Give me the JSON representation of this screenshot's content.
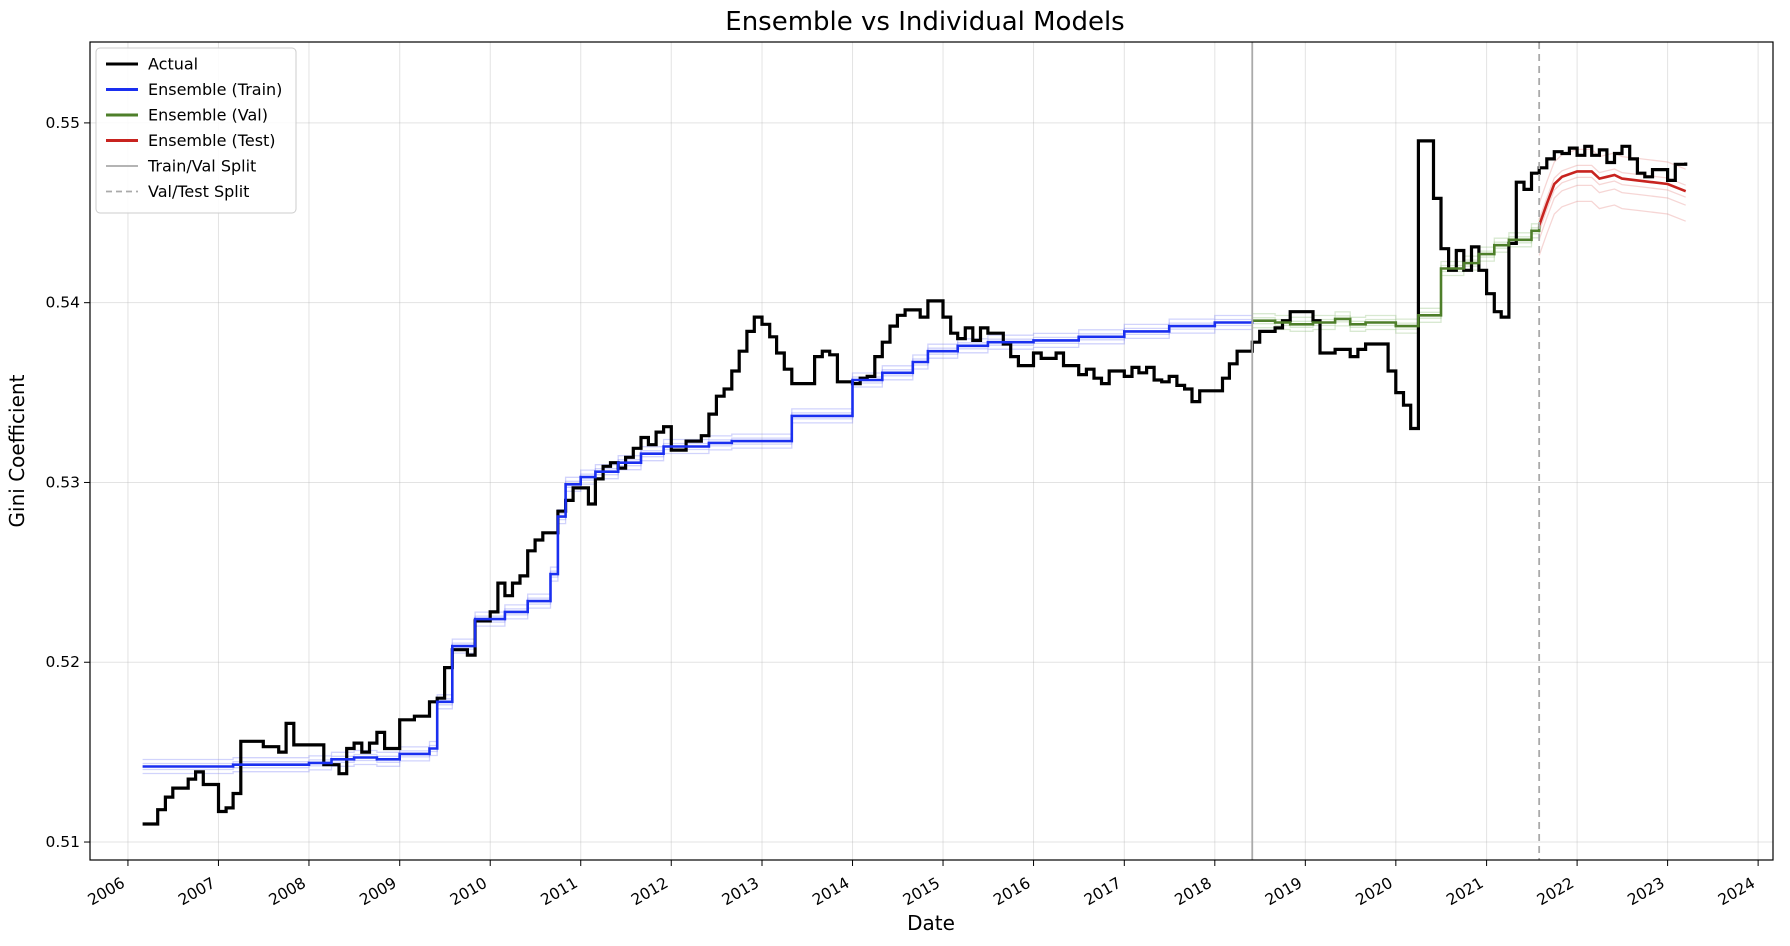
{
  "chart_data": {
    "type": "line",
    "title": "Ensemble vs Individual Models",
    "xlabel": "Date",
    "ylabel": "Gini Coefficient",
    "xlim": [
      "2005-08-01",
      "2024-03-01"
    ],
    "ylim": [
      0.509,
      0.5545
    ],
    "x_ticks": [
      "2006",
      "2007",
      "2008",
      "2009",
      "2010",
      "2011",
      "2012",
      "2013",
      "2014",
      "2015",
      "2016",
      "2017",
      "2018",
      "2019",
      "2020",
      "2021",
      "2022",
      "2023",
      "2024"
    ],
    "y_ticks": [
      {
        "value": 0.51,
        "label": "0.51"
      },
      {
        "value": 0.52,
        "label": "0.52"
      },
      {
        "value": 0.53,
        "label": "0.53"
      },
      {
        "value": 0.54,
        "label": "0.54"
      },
      {
        "value": 0.55,
        "label": "0.55"
      }
    ],
    "grid": true,
    "legend_position": "top-left",
    "series": [
      {
        "name": "Actual",
        "color": "#000000",
        "style": "steps",
        "points": [
          [
            "2006-03-01",
            0.511
          ],
          [
            "2006-05-01",
            0.5118
          ],
          [
            "2006-06-01",
            0.5125
          ],
          [
            "2006-07-01",
            0.513
          ],
          [
            "2006-09-01",
            0.5135
          ],
          [
            "2006-10-01",
            0.5139
          ],
          [
            "2006-11-01",
            0.5132
          ],
          [
            "2007-01-01",
            0.5117
          ],
          [
            "2007-02-01",
            0.5119
          ],
          [
            "2007-03-01",
            0.5127
          ],
          [
            "2007-04-01",
            0.5156
          ],
          [
            "2007-07-01",
            0.5153
          ],
          [
            "2007-09-01",
            0.515
          ],
          [
            "2007-10-01",
            0.5166
          ],
          [
            "2007-11-01",
            0.5154
          ],
          [
            "2008-03-01",
            0.5143
          ],
          [
            "2008-05-01",
            0.5138
          ],
          [
            "2008-06-01",
            0.5152
          ],
          [
            "2008-07-01",
            0.5155
          ],
          [
            "2008-08-01",
            0.515
          ],
          [
            "2008-09-01",
            0.5155
          ],
          [
            "2008-10-01",
            0.5161
          ],
          [
            "2008-11-01",
            0.5152
          ],
          [
            "2009-01-01",
            0.5168
          ],
          [
            "2009-03-01",
            0.517
          ],
          [
            "2009-05-01",
            0.5178
          ],
          [
            "2009-06-01",
            0.518
          ],
          [
            "2009-07-01",
            0.5197
          ],
          [
            "2009-08-01",
            0.5207
          ],
          [
            "2009-10-01",
            0.5204
          ],
          [
            "2009-11-01",
            0.5223
          ],
          [
            "2010-01-01",
            0.5228
          ],
          [
            "2010-02-01",
            0.5244
          ],
          [
            "2010-03-01",
            0.5237
          ],
          [
            "2010-04-01",
            0.5244
          ],
          [
            "2010-05-01",
            0.5248
          ],
          [
            "2010-06-01",
            0.5262
          ],
          [
            "2010-07-01",
            0.5268
          ],
          [
            "2010-08-01",
            0.5272
          ],
          [
            "2010-10-01",
            0.5284
          ],
          [
            "2010-11-01",
            0.529
          ],
          [
            "2010-12-01",
            0.5297
          ],
          [
            "2011-02-01",
            0.5288
          ],
          [
            "2011-03-01",
            0.5302
          ],
          [
            "2011-04-01",
            0.5309
          ],
          [
            "2011-05-01",
            0.5311
          ],
          [
            "2011-06-01",
            0.5308
          ],
          [
            "2011-07-01",
            0.5314
          ],
          [
            "2011-08-01",
            0.5319
          ],
          [
            "2011-09-01",
            0.5325
          ],
          [
            "2011-10-01",
            0.5321
          ],
          [
            "2011-11-01",
            0.5328
          ],
          [
            "2011-12-01",
            0.5331
          ],
          [
            "2012-01-01",
            0.5318
          ],
          [
            "2012-03-01",
            0.5323
          ],
          [
            "2012-05-01",
            0.5326
          ],
          [
            "2012-06-01",
            0.5338
          ],
          [
            "2012-07-01",
            0.5348
          ],
          [
            "2012-08-01",
            0.5352
          ],
          [
            "2012-09-01",
            0.5362
          ],
          [
            "2012-10-01",
            0.5373
          ],
          [
            "2012-11-01",
            0.5384
          ],
          [
            "2012-12-01",
            0.5392
          ],
          [
            "2013-01-01",
            0.5388
          ],
          [
            "2013-02-01",
            0.5381
          ],
          [
            "2013-03-01",
            0.5372
          ],
          [
            "2013-04-01",
            0.5363
          ],
          [
            "2013-05-01",
            0.5355
          ],
          [
            "2013-08-01",
            0.537
          ],
          [
            "2013-09-01",
            0.5373
          ],
          [
            "2013-10-01",
            0.5371
          ],
          [
            "2013-11-01",
            0.5356
          ],
          [
            "2014-01-01",
            0.5355
          ],
          [
            "2014-02-01",
            0.5358
          ],
          [
            "2014-03-01",
            0.5359
          ],
          [
            "2014-04-01",
            0.537
          ],
          [
            "2014-05-01",
            0.5378
          ],
          [
            "2014-06-01",
            0.5387
          ],
          [
            "2014-07-01",
            0.5393
          ],
          [
            "2014-08-01",
            0.5396
          ],
          [
            "2014-10-01",
            0.5392
          ],
          [
            "2014-11-01",
            0.5401
          ],
          [
            "2015-01-01",
            0.5392
          ],
          [
            "2015-02-01",
            0.5383
          ],
          [
            "2015-03-01",
            0.538
          ],
          [
            "2015-04-01",
            0.5386
          ],
          [
            "2015-05-01",
            0.5379
          ],
          [
            "2015-06-01",
            0.5386
          ],
          [
            "2015-07-01",
            0.5383
          ],
          [
            "2015-09-01",
            0.5377
          ],
          [
            "2015-10-01",
            0.537
          ],
          [
            "2015-11-01",
            0.5365
          ],
          [
            "2016-01-01",
            0.5372
          ],
          [
            "2016-02-01",
            0.5369
          ],
          [
            "2016-04-01",
            0.5372
          ],
          [
            "2016-05-01",
            0.5365
          ],
          [
            "2016-07-01",
            0.536
          ],
          [
            "2016-08-01",
            0.5363
          ],
          [
            "2016-09-01",
            0.5358
          ],
          [
            "2016-10-01",
            0.5355
          ],
          [
            "2016-11-01",
            0.5362
          ],
          [
            "2017-01-01",
            0.5359
          ],
          [
            "2017-02-01",
            0.5364
          ],
          [
            "2017-03-01",
            0.5361
          ],
          [
            "2017-04-01",
            0.5364
          ],
          [
            "2017-05-01",
            0.5357
          ],
          [
            "2017-06-01",
            0.5356
          ],
          [
            "2017-07-01",
            0.5359
          ],
          [
            "2017-08-01",
            0.5354
          ],
          [
            "2017-09-01",
            0.5352
          ],
          [
            "2017-10-01",
            0.5345
          ],
          [
            "2017-11-01",
            0.5351
          ],
          [
            "2018-01-01",
            0.5351
          ],
          [
            "2018-02-01",
            0.5358
          ],
          [
            "2018-03-01",
            0.5366
          ],
          [
            "2018-04-01",
            0.5373
          ],
          [
            "2018-06-01",
            0.5378
          ],
          [
            "2018-07-01",
            0.5384
          ],
          [
            "2018-09-01",
            0.5386
          ],
          [
            "2018-10-01",
            0.539
          ],
          [
            "2018-11-01",
            0.5395
          ],
          [
            "2019-02-01",
            0.539
          ],
          [
            "2019-03-01",
            0.5372
          ],
          [
            "2019-05-01",
            0.5374
          ],
          [
            "2019-07-01",
            0.537
          ],
          [
            "2019-08-01",
            0.5374
          ],
          [
            "2019-09-01",
            0.5377
          ],
          [
            "2019-12-01",
            0.5362
          ],
          [
            "2020-01-01",
            0.535
          ],
          [
            "2020-02-01",
            0.5343
          ],
          [
            "2020-03-01",
            0.533
          ],
          [
            "2020-04-01",
            0.549
          ],
          [
            "2020-06-01",
            0.5458
          ],
          [
            "2020-07-01",
            0.543
          ],
          [
            "2020-08-01",
            0.5418
          ],
          [
            "2020-09-01",
            0.5429
          ],
          [
            "2020-10-01",
            0.5418
          ],
          [
            "2020-11-01",
            0.5431
          ],
          [
            "2020-12-01",
            0.5418
          ],
          [
            "2021-01-01",
            0.5405
          ],
          [
            "2021-02-01",
            0.5395
          ],
          [
            "2021-03-01",
            0.5392
          ],
          [
            "2021-04-01",
            0.5433
          ],
          [
            "2021-05-01",
            0.5467
          ],
          [
            "2021-06-01",
            0.5463
          ],
          [
            "2021-07-01",
            0.5472
          ],
          [
            "2021-08-01",
            0.5475
          ],
          [
            "2021-09-01",
            0.548
          ],
          [
            "2021-10-01",
            0.5484
          ],
          [
            "2021-11-01",
            0.5483
          ],
          [
            "2021-12-01",
            0.5486
          ],
          [
            "2022-01-01",
            0.5482
          ],
          [
            "2022-02-01",
            0.5487
          ],
          [
            "2022-03-01",
            0.5482
          ],
          [
            "2022-04-01",
            0.5485
          ],
          [
            "2022-05-01",
            0.5478
          ],
          [
            "2022-06-01",
            0.5483
          ],
          [
            "2022-07-01",
            0.5487
          ],
          [
            "2022-08-01",
            0.548
          ],
          [
            "2022-09-01",
            0.5472
          ],
          [
            "2022-10-01",
            0.547
          ],
          [
            "2022-11-01",
            0.5474
          ],
          [
            "2023-01-01",
            0.5468
          ],
          [
            "2023-02-01",
            0.5477
          ],
          [
            "2023-03-15",
            0.5478
          ]
        ]
      },
      {
        "name": "Ensemble (Train)",
        "color": "#1a2ff0",
        "style": "steps",
        "points": [
          [
            "2006-03-01",
            0.5142
          ],
          [
            "2006-05-01",
            0.5142
          ],
          [
            "2007-01-01",
            0.5142
          ],
          [
            "2007-03-01",
            0.5143
          ],
          [
            "2008-01-01",
            0.5144
          ],
          [
            "2008-04-01",
            0.5146
          ],
          [
            "2008-07-01",
            0.5147
          ],
          [
            "2008-10-01",
            0.5146
          ],
          [
            "2009-01-01",
            0.5149
          ],
          [
            "2009-05-01",
            0.5152
          ],
          [
            "2009-06-01",
            0.5178
          ],
          [
            "2009-08-01",
            0.5209
          ],
          [
            "2009-11-01",
            0.5224
          ],
          [
            "2010-03-01",
            0.5228
          ],
          [
            "2010-06-01",
            0.5234
          ],
          [
            "2010-09-01",
            0.5249
          ],
          [
            "2010-10-01",
            0.5281
          ],
          [
            "2010-11-01",
            0.5299
          ],
          [
            "2011-01-01",
            0.5303
          ],
          [
            "2011-03-01",
            0.5306
          ],
          [
            "2011-06-01",
            0.5311
          ],
          [
            "2011-09-01",
            0.5316
          ],
          [
            "2011-12-01",
            0.532
          ],
          [
            "2012-03-01",
            0.532
          ],
          [
            "2012-06-01",
            0.5322
          ],
          [
            "2012-09-01",
            0.5323
          ],
          [
            "2013-01-01",
            0.5323
          ],
          [
            "2013-05-01",
            0.5337
          ],
          [
            "2014-01-01",
            0.5357
          ],
          [
            "2014-05-01",
            0.5361
          ],
          [
            "2014-09-01",
            0.5367
          ],
          [
            "2014-11-01",
            0.5373
          ],
          [
            "2015-03-01",
            0.5376
          ],
          [
            "2015-07-01",
            0.5378
          ],
          [
            "2016-01-01",
            0.5379
          ],
          [
            "2016-07-01",
            0.5381
          ],
          [
            "2017-01-01",
            0.5384
          ],
          [
            "2017-07-01",
            0.5387
          ],
          [
            "2018-01-01",
            0.5389
          ],
          [
            "2018-06-01",
            0.539
          ]
        ]
      },
      {
        "name": "Ensemble (Val)",
        "color": "#4e7f2a",
        "style": "steps",
        "points": [
          [
            "2018-06-01",
            0.539
          ],
          [
            "2018-09-01",
            0.5389
          ],
          [
            "2018-11-01",
            0.5388
          ],
          [
            "2019-02-01",
            0.5389
          ],
          [
            "2019-05-01",
            0.5391
          ],
          [
            "2019-07-01",
            0.5388
          ],
          [
            "2019-09-01",
            0.5389
          ],
          [
            "2020-01-01",
            0.5387
          ],
          [
            "2020-04-01",
            0.5393
          ],
          [
            "2020-07-01",
            0.5419
          ],
          [
            "2020-10-01",
            0.5422
          ],
          [
            "2020-12-01",
            0.5427
          ],
          [
            "2021-02-01",
            0.5432
          ],
          [
            "2021-04-01",
            0.5435
          ],
          [
            "2021-07-01",
            0.544
          ],
          [
            "2021-08-01",
            0.5443
          ]
        ]
      },
      {
        "name": "Ensemble (Test)",
        "color": "#c8231f",
        "style": "line",
        "points": [
          [
            "2021-08-01",
            0.5443
          ],
          [
            "2021-09-01",
            0.5455
          ],
          [
            "2021-10-01",
            0.5466
          ],
          [
            "2021-11-01",
            0.547
          ],
          [
            "2022-01-01",
            0.5473
          ],
          [
            "2022-03-01",
            0.5473
          ],
          [
            "2022-04-01",
            0.5469
          ],
          [
            "2022-05-01",
            0.547
          ],
          [
            "2022-06-01",
            0.5471
          ],
          [
            "2022-07-01",
            0.5469
          ],
          [
            "2022-09-01",
            0.5468
          ],
          [
            "2022-11-01",
            0.5467
          ],
          [
            "2023-01-01",
            0.5466
          ],
          [
            "2023-03-15",
            0.5462
          ]
        ]
      },
      {
        "name": "Train/Val Split",
        "color": "#aaaaaa",
        "style": "vline",
        "date": "2018-06-01"
      },
      {
        "name": "Val/Test Split",
        "color": "#aaaaaa",
        "style": "vline-dashed",
        "date": "2021-08-01"
      }
    ]
  }
}
